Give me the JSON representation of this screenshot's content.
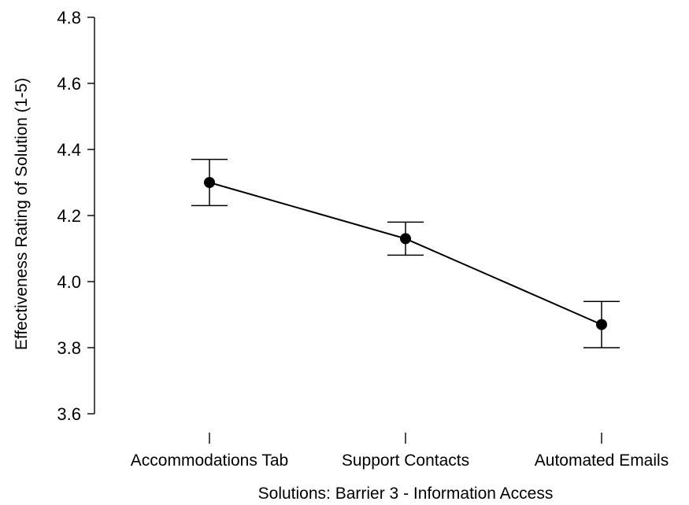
{
  "chart_data": {
    "type": "line",
    "title": "",
    "xlabel": "Solutions: Barrier 3 - Information Access",
    "ylabel": "Effectiveness Rating of Solution (1-5)",
    "ylim": [
      3.6,
      4.8
    ],
    "yticks": [
      3.6,
      3.8,
      4.0,
      4.2,
      4.4,
      4.6,
      4.8
    ],
    "ytick_labels": [
      "3.6",
      "3.8",
      "4.0",
      "4.2",
      "4.4",
      "4.6",
      "4.8"
    ],
    "categories": [
      "Accommodations Tab",
      "Support Contacts",
      "Automated Emails"
    ],
    "series": [
      {
        "values": [
          4.3,
          4.13,
          3.87
        ],
        "error_low": [
          4.23,
          4.08,
          3.8
        ],
        "error_high": [
          4.37,
          4.18,
          3.94
        ]
      }
    ],
    "grid": false,
    "legend": "none",
    "colors": {
      "line": "#000000",
      "points": "#000000",
      "error_bars": "#000000"
    }
  }
}
